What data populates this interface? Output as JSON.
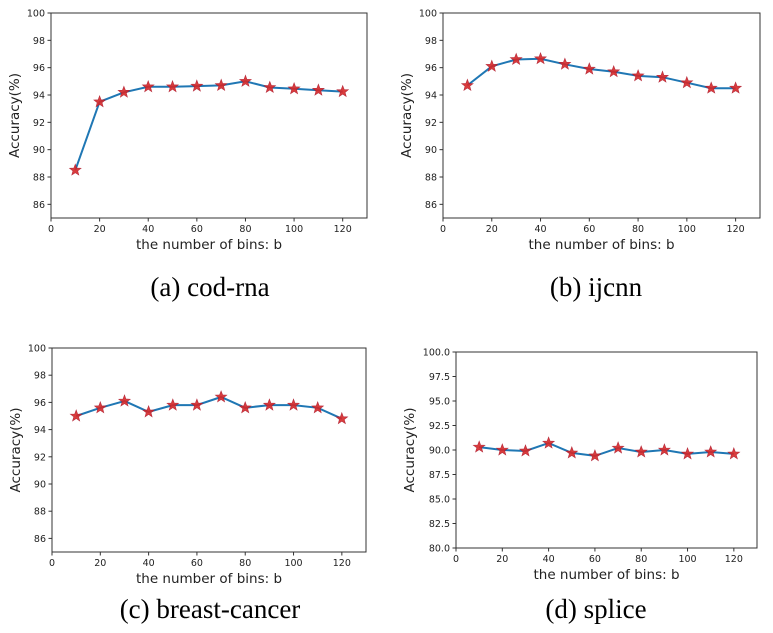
{
  "chart_data": [
    {
      "type": "line",
      "caption": "(a) cod-rna",
      "xlabel": "the number of bins: b",
      "ylabel": "Accuracy(%)",
      "xlim": [
        0,
        130
      ],
      "ylim": [
        85,
        100
      ],
      "xticks": [
        "0",
        "20",
        "40",
        "60",
        "80",
        "100",
        "120"
      ],
      "yticks": [
        "86",
        "88",
        "90",
        "92",
        "94",
        "96",
        "98",
        "100"
      ],
      "grid": false,
      "x": [
        10,
        20,
        30,
        40,
        50,
        60,
        70,
        80,
        90,
        100,
        110,
        120
      ],
      "values": [
        88.5,
        93.5,
        94.2,
        94.6,
        94.6,
        94.65,
        94.7,
        95.0,
        94.55,
        94.45,
        94.35,
        94.25
      ],
      "line_color": "#1f77b4",
      "marker": "star",
      "marker_color": "#d62728"
    },
    {
      "type": "line",
      "caption": "(b) ijcnn",
      "xlabel": "the number of bins: b",
      "ylabel": "Accuracy(%)",
      "xlim": [
        0,
        130
      ],
      "ylim": [
        85,
        100
      ],
      "xticks": [
        "0",
        "20",
        "40",
        "60",
        "80",
        "100",
        "120"
      ],
      "yticks": [
        "86",
        "88",
        "90",
        "92",
        "94",
        "96",
        "98",
        "100"
      ],
      "grid": false,
      "x": [
        10,
        20,
        30,
        40,
        50,
        60,
        70,
        80,
        90,
        100,
        110,
        120
      ],
      "values": [
        94.7,
        96.1,
        96.6,
        96.65,
        96.25,
        95.9,
        95.7,
        95.4,
        95.3,
        94.9,
        94.5,
        94.5
      ],
      "line_color": "#1f77b4",
      "marker": "star",
      "marker_color": "#d62728"
    },
    {
      "type": "line",
      "caption": "(c) breast-cancer",
      "xlabel": "the number of bins: b",
      "ylabel": "Accuracy(%)",
      "xlim": [
        0,
        130
      ],
      "ylim": [
        85,
        100
      ],
      "xticks": [
        "0",
        "20",
        "40",
        "60",
        "80",
        "100",
        "120"
      ],
      "yticks": [
        "86",
        "88",
        "90",
        "92",
        "94",
        "96",
        "98",
        "100"
      ],
      "grid": false,
      "x": [
        10,
        20,
        30,
        40,
        50,
        60,
        70,
        80,
        90,
        100,
        110,
        120
      ],
      "values": [
        95.0,
        95.6,
        96.1,
        95.3,
        95.8,
        95.8,
        96.4,
        95.6,
        95.8,
        95.8,
        95.6,
        94.8
      ],
      "line_color": "#1f77b4",
      "marker": "star",
      "marker_color": "#d62728"
    },
    {
      "type": "line",
      "caption": "(d) splice",
      "xlabel": "the number of bins: b",
      "ylabel": "Accuracy(%)",
      "xlim": [
        0,
        130
      ],
      "ylim": [
        80,
        100
      ],
      "xticks": [
        "0",
        "20",
        "40",
        "60",
        "80",
        "100",
        "120"
      ],
      "yticks": [
        "80.0",
        "82.5",
        "85.0",
        "87.5",
        "90.0",
        "92.5",
        "95.0",
        "97.5",
        "100.0"
      ],
      "grid": false,
      "x": [
        10,
        20,
        30,
        40,
        50,
        60,
        70,
        80,
        90,
        100,
        110,
        120
      ],
      "values": [
        90.3,
        90.0,
        89.9,
        90.7,
        89.7,
        89.4,
        90.2,
        89.8,
        90.0,
        89.6,
        89.8,
        89.6
      ],
      "line_color": "#1f77b4",
      "marker": "star",
      "marker_color": "#d62728"
    }
  ]
}
